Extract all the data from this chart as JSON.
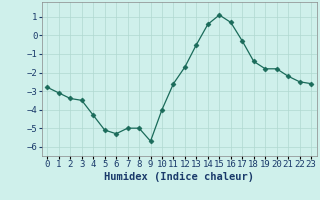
{
  "x": [
    0,
    1,
    2,
    3,
    4,
    5,
    6,
    7,
    8,
    9,
    10,
    11,
    12,
    13,
    14,
    15,
    16,
    17,
    18,
    19,
    20,
    21,
    22,
    23
  ],
  "y": [
    -2.8,
    -3.1,
    -3.4,
    -3.5,
    -4.3,
    -5.1,
    -5.3,
    -5.0,
    -5.0,
    -5.7,
    -4.0,
    -2.6,
    -1.7,
    -0.5,
    0.6,
    1.1,
    0.7,
    -0.3,
    -1.4,
    -1.8,
    -1.8,
    -2.2,
    -2.5,
    -2.6
  ],
  "xlabel": "Humidex (Indice chaleur)",
  "xlim_min": -0.5,
  "xlim_max": 23.5,
  "ylim_min": -6.5,
  "ylim_max": 1.8,
  "yticks": [
    1,
    0,
    -1,
    -2,
    -3,
    -4,
    -5,
    -6
  ],
  "xtick_labels": [
    "0",
    "1",
    "2",
    "3",
    "4",
    "5",
    "6",
    "7",
    "8",
    "9",
    "10",
    "11",
    "12",
    "13",
    "14",
    "15",
    "16",
    "17",
    "18",
    "19",
    "20",
    "21",
    "22",
    "23"
  ],
  "line_color": "#1a6b5a",
  "marker": "D",
  "marker_size": 2.5,
  "bg_color": "#cff0eb",
  "grid_color": "#b0d8d0",
  "label_color": "#1a3a6a",
  "xlabel_fontsize": 7.5,
  "tick_fontsize": 6.5
}
